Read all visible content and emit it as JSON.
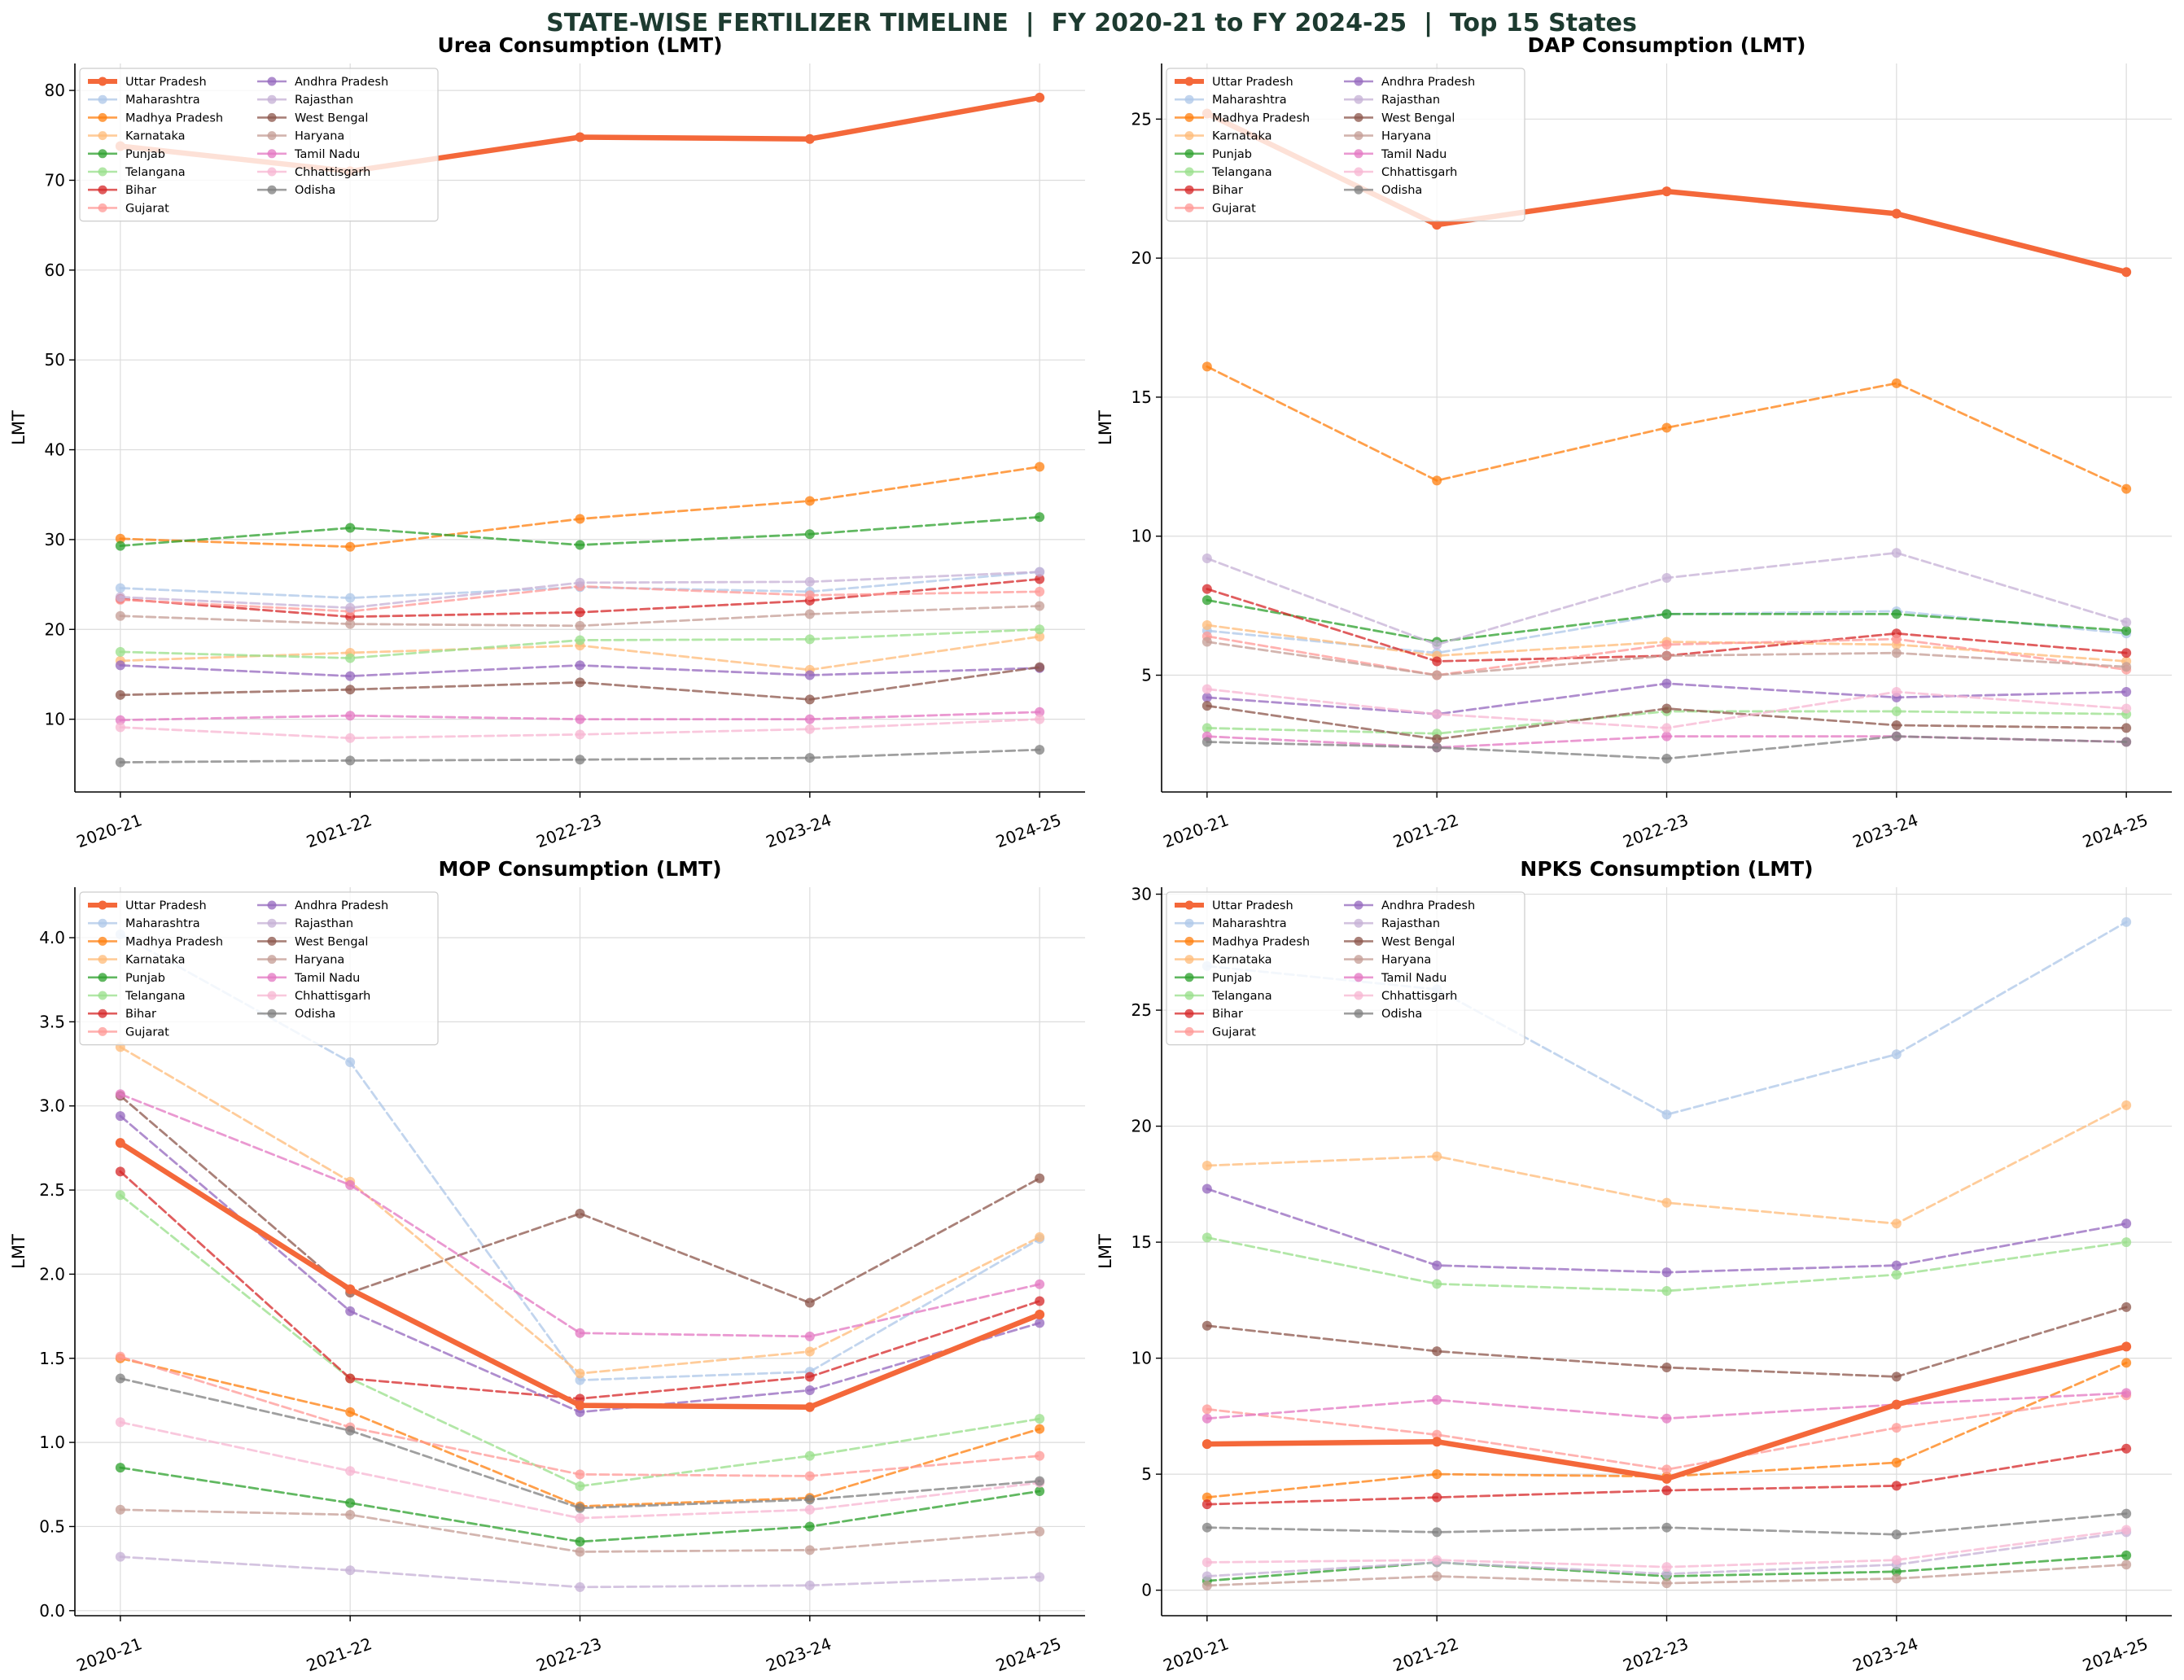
{
  "figure_title": "STATE-WISE FERTILIZER TIMELINE  |  FY 2020-21 to FY 2024-25  |  Top 15 States",
  "colors": {
    "Uttar Pradesh": "#f4683a",
    "Maharashtra": "#aec7e8",
    "Madhya Pradesh": "#ff7f0e",
    "Karnataka": "#ffbb78",
    "Punjab": "#2ca02c",
    "Telangana": "#98df8a",
    "Bihar": "#d62728",
    "Gujarat": "#ff9896",
    "Andhra Pradesh": "#9467bd",
    "Rajasthan": "#c5b0d5",
    "West Bengal": "#8c564b",
    "Haryana": "#c49c94",
    "Tamil Nadu": "#e377c2",
    "Chhattisgarh": "#f7b6d2",
    "Odisha": "#7f7f7f"
  },
  "chart_data": [
    {
      "type": "line",
      "title": "Urea Consumption (LMT)",
      "ylabel": "LMT",
      "xlabel": "",
      "categories": [
        "2020-21",
        "2021-22",
        "2022-23",
        "2023-24",
        "2024-25"
      ],
      "ylim": [
        1.9,
        83
      ],
      "yticks": [
        10,
        20,
        30,
        40,
        50,
        60,
        70,
        80
      ],
      "legend_placement": "upper-left",
      "grid": true,
      "series": [
        {
          "name": "Uttar Pradesh",
          "values": [
            73.8,
            71.0,
            74.8,
            74.6,
            79.2
          ]
        },
        {
          "name": "Maharashtra",
          "values": [
            24.6,
            23.5,
            24.7,
            24.2,
            26.4
          ]
        },
        {
          "name": "Madhya Pradesh",
          "values": [
            30.1,
            29.2,
            32.3,
            34.3,
            38.1
          ]
        },
        {
          "name": "Karnataka",
          "values": [
            16.5,
            17.4,
            18.2,
            15.5,
            19.2
          ]
        },
        {
          "name": "Punjab",
          "values": [
            29.3,
            31.3,
            29.4,
            30.6,
            32.5
          ]
        },
        {
          "name": "Telangana",
          "values": [
            17.5,
            16.8,
            18.8,
            18.9,
            20.0
          ]
        },
        {
          "name": "Bihar",
          "values": [
            23.4,
            21.4,
            21.9,
            23.2,
            25.6
          ]
        },
        {
          "name": "Gujarat",
          "values": [
            23.3,
            22.0,
            24.8,
            23.8,
            24.2
          ]
        },
        {
          "name": "Andhra Pradesh",
          "values": [
            16.0,
            14.8,
            16.0,
            14.9,
            15.7
          ]
        },
        {
          "name": "Rajasthan",
          "values": [
            23.6,
            22.4,
            25.2,
            25.3,
            26.4
          ]
        },
        {
          "name": "West Bengal",
          "values": [
            12.7,
            13.3,
            14.1,
            12.2,
            15.8
          ]
        },
        {
          "name": "Haryana",
          "values": [
            21.5,
            20.6,
            20.4,
            21.7,
            22.6
          ]
        },
        {
          "name": "Tamil Nadu",
          "values": [
            9.9,
            10.4,
            10.0,
            10.0,
            10.8
          ]
        },
        {
          "name": "Chhattisgarh",
          "values": [
            9.1,
            7.9,
            8.3,
            8.9,
            10.0
          ]
        },
        {
          "name": "Odisha",
          "values": [
            5.2,
            5.4,
            5.5,
            5.7,
            6.6
          ]
        }
      ]
    },
    {
      "type": "line",
      "title": "DAP Consumption (LMT)",
      "ylabel": "LMT",
      "xlabel": "",
      "categories": [
        "2020-21",
        "2021-22",
        "2022-23",
        "2023-24",
        "2024-25"
      ],
      "ylim": [
        0.8,
        27
      ],
      "yticks": [
        5,
        10,
        15,
        20,
        25
      ],
      "legend_placement": "upper-left",
      "grid": true,
      "series": [
        {
          "name": "Uttar Pradesh",
          "values": [
            25.2,
            21.2,
            22.4,
            21.6,
            19.5
          ]
        },
        {
          "name": "Maharashtra",
          "values": [
            6.6,
            5.8,
            7.2,
            7.3,
            6.5
          ]
        },
        {
          "name": "Madhya Pradesh",
          "values": [
            16.1,
            12.0,
            13.9,
            15.5,
            11.7
          ]
        },
        {
          "name": "Karnataka",
          "values": [
            6.8,
            5.7,
            6.2,
            6.1,
            5.5
          ]
        },
        {
          "name": "Punjab",
          "values": [
            7.7,
            6.2,
            7.2,
            7.2,
            6.6
          ]
        },
        {
          "name": "Telangana",
          "values": [
            3.1,
            2.9,
            3.7,
            3.7,
            3.6
          ]
        },
        {
          "name": "Bihar",
          "values": [
            8.1,
            5.5,
            5.7,
            6.5,
            5.8
          ]
        },
        {
          "name": "Gujarat",
          "values": [
            6.4,
            5.0,
            6.1,
            6.3,
            5.2
          ]
        },
        {
          "name": "Andhra Pradesh",
          "values": [
            4.2,
            3.6,
            4.7,
            4.2,
            4.4
          ]
        },
        {
          "name": "Rajasthan",
          "values": [
            9.2,
            6.1,
            8.5,
            9.4,
            6.9
          ]
        },
        {
          "name": "West Bengal",
          "values": [
            3.9,
            2.7,
            3.8,
            3.2,
            3.1
          ]
        },
        {
          "name": "Haryana",
          "values": [
            6.2,
            5.0,
            5.7,
            5.8,
            5.3
          ]
        },
        {
          "name": "Tamil Nadu",
          "values": [
            2.8,
            2.4,
            2.8,
            2.8,
            2.6
          ]
        },
        {
          "name": "Chhattisgarh",
          "values": [
            4.5,
            3.6,
            3.1,
            4.4,
            3.8
          ]
        },
        {
          "name": "Odisha",
          "values": [
            2.6,
            2.4,
            2.0,
            2.8,
            2.6
          ]
        }
      ]
    },
    {
      "type": "line",
      "title": "MOP Consumption (LMT)",
      "ylabel": "LMT",
      "xlabel": "",
      "categories": [
        "2020-21",
        "2021-22",
        "2022-23",
        "2023-24",
        "2024-25"
      ],
      "ylim": [
        -0.03,
        4.3
      ],
      "yticks": [
        0.0,
        0.5,
        1.0,
        1.5,
        2.0,
        2.5,
        3.0,
        3.5,
        4.0
      ],
      "legend_placement": "upper-left",
      "grid": true,
      "series": [
        {
          "name": "Uttar Pradesh",
          "values": [
            2.78,
            1.91,
            1.22,
            1.21,
            1.76
          ]
        },
        {
          "name": "Maharashtra",
          "values": [
            4.02,
            3.26,
            1.37,
            1.42,
            2.21
          ]
        },
        {
          "name": "Madhya Pradesh",
          "values": [
            1.5,
            1.18,
            0.62,
            0.67,
            1.08
          ]
        },
        {
          "name": "Karnataka",
          "values": [
            3.35,
            2.55,
            1.41,
            1.54,
            2.22
          ]
        },
        {
          "name": "Punjab",
          "values": [
            0.85,
            0.64,
            0.41,
            0.5,
            0.71
          ]
        },
        {
          "name": "Telangana",
          "values": [
            2.47,
            1.38,
            0.74,
            0.92,
            1.14
          ]
        },
        {
          "name": "Bihar",
          "values": [
            2.61,
            1.38,
            1.26,
            1.39,
            1.84
          ]
        },
        {
          "name": "Gujarat",
          "values": [
            1.51,
            1.09,
            0.81,
            0.8,
            0.92
          ]
        },
        {
          "name": "Andhra Pradesh",
          "values": [
            2.94,
            1.78,
            1.18,
            1.31,
            1.71
          ]
        },
        {
          "name": "Rajasthan",
          "values": [
            0.32,
            0.24,
            0.14,
            0.15,
            0.2
          ]
        },
        {
          "name": "West Bengal",
          "values": [
            3.06,
            1.89,
            2.36,
            1.83,
            2.57
          ]
        },
        {
          "name": "Haryana",
          "values": [
            0.6,
            0.57,
            0.35,
            0.36,
            0.47
          ]
        },
        {
          "name": "Tamil Nadu",
          "values": [
            3.07,
            2.53,
            1.65,
            1.63,
            1.94
          ]
        },
        {
          "name": "Chhattisgarh",
          "values": [
            1.12,
            0.83,
            0.55,
            0.6,
            0.76
          ]
        },
        {
          "name": "Odisha",
          "values": [
            1.38,
            1.07,
            0.61,
            0.66,
            0.77
          ]
        }
      ]
    },
    {
      "type": "line",
      "title": "NPKS Consumption (LMT)",
      "ylabel": "LMT",
      "xlabel": "",
      "categories": [
        "2020-21",
        "2021-22",
        "2022-23",
        "2023-24",
        "2024-25"
      ],
      "ylim": [
        -1.1,
        30.3
      ],
      "yticks": [
        0,
        5,
        10,
        15,
        20,
        25,
        30
      ],
      "legend_placement": "upper-left",
      "grid": true,
      "series": [
        {
          "name": "Uttar Pradesh",
          "values": [
            6.3,
            6.4,
            4.8,
            8.0,
            10.5
          ]
        },
        {
          "name": "Maharashtra",
          "values": [
            26.9,
            25.9,
            20.5,
            23.1,
            28.8
          ]
        },
        {
          "name": "Madhya Pradesh",
          "values": [
            4.0,
            5.0,
            4.9,
            5.5,
            9.8
          ]
        },
        {
          "name": "Karnataka",
          "values": [
            18.3,
            18.7,
            16.7,
            15.8,
            20.9
          ]
        },
        {
          "name": "Punjab",
          "values": [
            0.4,
            1.2,
            0.6,
            0.8,
            1.5
          ]
        },
        {
          "name": "Telangana",
          "values": [
            15.2,
            13.2,
            12.9,
            13.6,
            15.0
          ]
        },
        {
          "name": "Bihar",
          "values": [
            3.7,
            4.0,
            4.3,
            4.5,
            6.1
          ]
        },
        {
          "name": "Gujarat",
          "values": [
            7.8,
            6.7,
            5.2,
            7.0,
            8.4
          ]
        },
        {
          "name": "Andhra Pradesh",
          "values": [
            17.3,
            14.0,
            13.7,
            14.0,
            15.8
          ]
        },
        {
          "name": "Rajasthan",
          "values": [
            0.6,
            1.2,
            0.7,
            1.1,
            2.5
          ]
        },
        {
          "name": "West Bengal",
          "values": [
            11.4,
            10.3,
            9.6,
            9.2,
            12.2
          ]
        },
        {
          "name": "Haryana",
          "values": [
            0.2,
            0.6,
            0.3,
            0.5,
            1.1
          ]
        },
        {
          "name": "Tamil Nadu",
          "values": [
            7.4,
            8.2,
            7.4,
            8.0,
            8.5
          ]
        },
        {
          "name": "Chhattisgarh",
          "values": [
            1.2,
            1.3,
            1.0,
            1.3,
            2.6
          ]
        },
        {
          "name": "Odisha",
          "values": [
            2.7,
            2.5,
            2.7,
            2.4,
            3.3
          ]
        }
      ]
    }
  ]
}
